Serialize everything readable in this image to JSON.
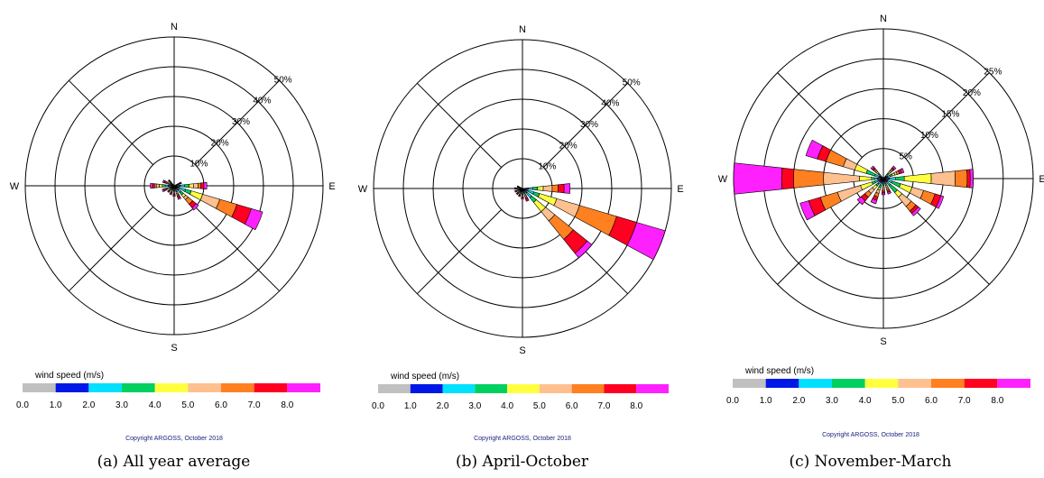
{
  "panels": [
    {
      "caption": "(a) All year average"
    },
    {
      "caption": "(b) April-October"
    },
    {
      "caption": "(c) November-March"
    }
  ],
  "chart_data": [
    {
      "type": "wind_rose",
      "compass": [
        "N",
        "E",
        "S",
        "W"
      ],
      "radial_ticks": [
        "10%",
        "20%",
        "30%",
        "40%",
        "50%"
      ],
      "rmax": 50,
      "legend_title": "wind speed (m/s)",
      "speed_ticks": [
        "0.0",
        "1.0",
        "2.0",
        "3.0",
        "4.0",
        "5.0",
        "6.0",
        "7.0",
        "8.0"
      ],
      "bin_colors": [
        "#c0c0c0",
        "#0018e6",
        "#00e0ff",
        "#00d060",
        "#ffff40",
        "#ffc090",
        "#ff8020",
        "#ff0020",
        "#ff20ff"
      ],
      "copyright": "Copyright ARGOSS, October 2018",
      "sectors": [
        {
          "dir": 67.5,
          "cum": [
            0.6,
            0.9,
            1.2,
            1.4,
            1.6,
            1.8,
            2.0,
            2.3,
            2.6
          ]
        },
        {
          "dir": 90,
          "cum": [
            1,
            2,
            3.5,
            5,
            6.5,
            8,
            9,
            10,
            11
          ]
        },
        {
          "dir": 112.5,
          "cum": [
            1,
            2,
            4,
            6,
            10,
            16,
            22,
            27,
            31
          ]
        },
        {
          "dir": 135,
          "cum": [
            1,
            2,
            3,
            4,
            5,
            6,
            8,
            9.5,
            10.5
          ]
        },
        {
          "dir": 157.5,
          "cum": [
            0.7,
            1.2,
            1.7,
            2.2,
            2.7,
            3.2,
            3.6,
            4.2,
            4.8
          ]
        },
        {
          "dir": 180,
          "cum": [
            0.5,
            0.9,
            1.3,
            1.7,
            2.1,
            2.5,
            2.8,
            3.2,
            3.6
          ]
        },
        {
          "dir": 202.5,
          "cum": [
            0.4,
            0.7,
            1.0,
            1.3,
            1.6,
            2.0,
            2.4,
            2.8,
            3.2
          ]
        },
        {
          "dir": 225,
          "cum": [
            0.4,
            0.7,
            1.0,
            1.3,
            1.6,
            2.0,
            2.3,
            2.6,
            2.9
          ]
        },
        {
          "dir": 247.5,
          "cum": [
            0.5,
            1.0,
            1.5,
            2.0,
            2.4,
            2.8,
            3.2,
            3.7,
            4.2
          ]
        },
        {
          "dir": 270,
          "cum": [
            1,
            2,
            3,
            4,
            5,
            6,
            6.6,
            7.3,
            8
          ]
        },
        {
          "dir": 292.5,
          "cum": [
            0.5,
            0.9,
            1.3,
            1.7,
            2.1,
            2.6,
            3.0,
            3.5,
            4.0
          ]
        },
        {
          "dir": 315,
          "cum": [
            0.3,
            0.5,
            0.8,
            1.1,
            1.4,
            1.7,
            2.0,
            2.3,
            2.6
          ]
        }
      ]
    },
    {
      "type": "wind_rose",
      "compass": [
        "N",
        "E",
        "S",
        "W"
      ],
      "radial_ticks": [
        "10%",
        "20%",
        "30%",
        "40%",
        "50%"
      ],
      "rmax": 50,
      "legend_title": "wind speed (m/s)",
      "speed_ticks": [
        "0.0",
        "1.0",
        "2.0",
        "3.0",
        "4.0",
        "5.0",
        "6.0",
        "7.0",
        "8.0"
      ],
      "bin_colors": [
        "#c0c0c0",
        "#0018e6",
        "#00e0ff",
        "#00d060",
        "#ffff40",
        "#ffc090",
        "#ff8020",
        "#ff0020",
        "#ff20ff"
      ],
      "copyright": "Copyright ARGOSS, October 2018",
      "sectors": [
        {
          "dir": 90,
          "cum": [
            1,
            2,
            3.5,
            5,
            7,
            10,
            12,
            14,
            16
          ]
        },
        {
          "dir": 112.5,
          "cum": [
            1,
            2,
            4,
            6,
            12,
            20,
            33,
            40,
            50
          ]
        },
        {
          "dir": 135,
          "cum": [
            1,
            2,
            4,
            6,
            10,
            14,
            22,
            28,
            30
          ]
        },
        {
          "dir": 157.5,
          "cum": [
            0.5,
            1.0,
            1.5,
            2.0,
            2.5,
            3.0,
            3.5,
            4.0,
            4.5
          ]
        },
        {
          "dir": 180,
          "cum": [
            0.4,
            0.8,
            1.2,
            1.6,
            2.0,
            2.4,
            2.8,
            3.2,
            3.6
          ]
        },
        {
          "dir": 202.5,
          "cum": [
            0.4,
            0.7,
            1.0,
            1.3,
            1.6,
            2.0,
            2.3,
            2.6,
            2.9
          ]
        },
        {
          "dir": 225,
          "cum": [
            0.3,
            0.6,
            0.9,
            1.2,
            1.5,
            1.8,
            2.1,
            2.4,
            2.7
          ]
        },
        {
          "dir": 247.5,
          "cum": [
            0.3,
            0.6,
            0.9,
            1.2,
            1.5,
            1.8,
            2.1,
            2.4,
            2.7
          ]
        },
        {
          "dir": 270,
          "cum": [
            0.3,
            0.6,
            0.9,
            1.2,
            1.5,
            1.8,
            2.1,
            2.4,
            2.7
          ]
        },
        {
          "dir": 292.5,
          "cum": [
            0.3,
            0.5,
            0.7,
            0.9,
            1.1,
            1.3,
            1.5,
            1.7,
            1.9
          ]
        }
      ]
    },
    {
      "type": "wind_rose",
      "compass": [
        "N",
        "E",
        "S",
        "W"
      ],
      "radial_ticks": [
        "5%",
        "10%",
        "15%",
        "20%",
        "25%"
      ],
      "rmax": 25,
      "legend_title": "wind speed (m/s)",
      "speed_ticks": [
        "0.0",
        "1.0",
        "2.0",
        "3.0",
        "4.0",
        "5.0",
        "6.0",
        "7.0",
        "8.0"
      ],
      "bin_colors": [
        "#c0c0c0",
        "#0018e6",
        "#00e0ff",
        "#00d060",
        "#ffff40",
        "#ffc090",
        "#ff8020",
        "#ff0020",
        "#ff20ff"
      ],
      "copyright": "Copyright ARGOSS, October 2018",
      "sectors": [
        {
          "dir": 45,
          "cum": [
            0.3,
            0.6,
            0.9,
            1.2,
            1.5,
            1.8,
            2.1,
            2.4,
            2.7
          ]
        },
        {
          "dir": 67.5,
          "cum": [
            0.4,
            0.8,
            1.2,
            1.6,
            2.0,
            2.4,
            2.8,
            3.2,
            3.6
          ]
        },
        {
          "dir": 90,
          "cum": [
            0.5,
            1,
            2,
            3.5,
            8,
            12,
            14,
            14.5,
            15
          ]
        },
        {
          "dir": 112.5,
          "cum": [
            0.4,
            0.8,
            1.5,
            3,
            5,
            7,
            9,
            10,
            10.5
          ]
        },
        {
          "dir": 135,
          "cum": [
            0.4,
            0.8,
            1.5,
            3,
            4,
            6,
            7,
            7.5,
            8
          ]
        },
        {
          "dir": 157.5,
          "cum": [
            0.3,
            0.6,
            0.9,
            1.2,
            1.5,
            1.8,
            2.1,
            2.4,
            2.7
          ]
        },
        {
          "dir": 180,
          "cum": [
            0.3,
            0.6,
            0.9,
            1.2,
            1.5,
            1.8,
            2.1,
            2.4,
            2.7
          ]
        },
        {
          "dir": 202.5,
          "cum": [
            0.4,
            0.8,
            1.2,
            1.6,
            2.0,
            2.6,
            3.2,
            3.8,
            4.4
          ]
        },
        {
          "dir": 225,
          "cum": [
            0.4,
            0.8,
            1.2,
            1.6,
            2.4,
            3.2,
            4.0,
            4.8,
            5.6
          ]
        },
        {
          "dir": 247.5,
          "cum": [
            0.5,
            1,
            1.5,
            2,
            4,
            8,
            11,
            13,
            14.5
          ]
        },
        {
          "dir": 270,
          "cum": [
            0.5,
            1,
            1.5,
            2,
            4,
            10,
            15,
            17,
            25
          ]
        },
        {
          "dir": 292.5,
          "cum": [
            0.4,
            0.8,
            1.5,
            3,
            5,
            7,
            10,
            11.5,
            13.5
          ]
        },
        {
          "dir": 315,
          "cum": [
            0.3,
            0.6,
            0.9,
            1.2,
            1.5,
            1.8,
            2.1,
            2.4,
            2.7
          ]
        }
      ]
    }
  ]
}
